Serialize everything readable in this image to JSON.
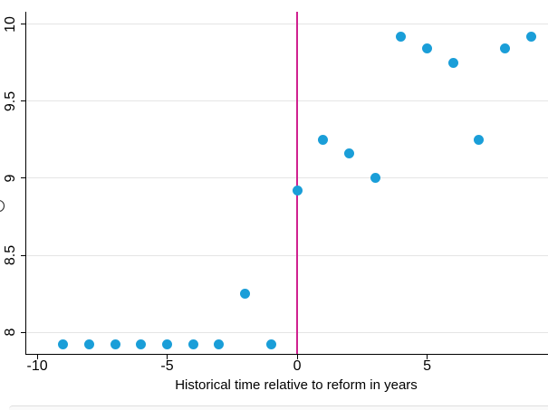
{
  "chart_data": {
    "type": "scatter",
    "title": "",
    "xlabel": "Historical time relative to reform in years",
    "ylabel": "",
    "x": [
      -9,
      -8,
      -7,
      -6,
      -5,
      -4,
      -3,
      -2,
      -1,
      0,
      1,
      2,
      3,
      4,
      5,
      6,
      7,
      8,
      9
    ],
    "y": [
      7.92,
      7.92,
      7.92,
      7.92,
      7.92,
      7.92,
      7.92,
      8.25,
      7.92,
      8.92,
      9.25,
      9.16,
      9.0,
      9.92,
      9.84,
      9.75,
      9.25,
      9.84,
      9.92
    ],
    "x_ticks": [
      -10,
      -5,
      0,
      5
    ],
    "x_tick_labels": [
      "-10",
      "-5",
      "0",
      "5"
    ],
    "y_ticks": [
      8,
      8.5,
      9,
      9.5,
      10
    ],
    "y_tick_labels": [
      "8",
      "8.5",
      "9",
      "9.5",
      "10"
    ],
    "xlim": [
      -10.42,
      9.65
    ],
    "ylim": [
      7.86,
      10.08
    ],
    "vline_x": 0,
    "grid": "horizontal-only",
    "legend": "none",
    "marker_color": "#1A9ED8",
    "vline_color": "#D0218F",
    "grid_color": "#E5E5E5",
    "axis_color": "#000000",
    "text_color": "#000000"
  }
}
